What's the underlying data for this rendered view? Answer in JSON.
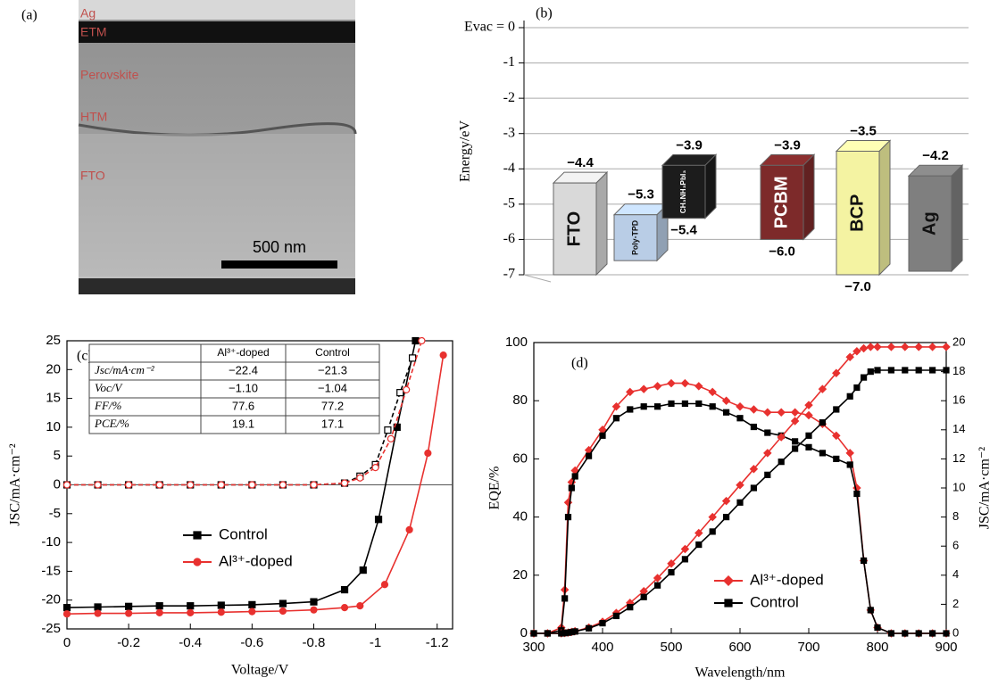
{
  "panel_a": {
    "label": "(a)",
    "layers": [
      "Ag",
      "ETM",
      "Perovskite",
      "HTM",
      "FTO"
    ],
    "scale_bar": "500 nm"
  },
  "chart_data": [
    {
      "type": "energy-level",
      "panel_label": "(b)",
      "ylabel": "Energy/eV",
      "ylim": [
        -7,
        0
      ],
      "yticks": [
        {
          "value": 0,
          "label": "Evac = 0"
        },
        -1,
        -2,
        -3,
        -4,
        -5,
        -6,
        -7
      ],
      "categories": [
        "FTO",
        "Poly-TPD",
        "CH₃NH₃PbI₃",
        "PCBM",
        "BCP",
        "Ag"
      ],
      "colors": [
        "#d9d9d9",
        "#b9cde6",
        "#1c1c1c",
        "#7d2a2a",
        "#f4f3a2",
        "#7f7f7f"
      ],
      "top_values": [
        -4.4,
        -5.3,
        -3.9,
        -3.9,
        -3.5,
        -4.2
      ],
      "top_labels": [
        "−4.4",
        "−5.3",
        "−3.9",
        "−3.9",
        "−3.5",
        "−4.2"
      ],
      "bottom_values": [
        -7.0,
        -6.6,
        -5.4,
        -6.0,
        -7.0,
        -6.9
      ],
      "bottom_labels": [
        null,
        null,
        "−5.4",
        "−6.0",
        "−7.0",
        null
      ]
    },
    {
      "type": "line",
      "panel_label": "(c)",
      "xlabel": "Voltage/V",
      "ylabel": "JSC/mA·cm⁻²",
      "xlim": [
        0,
        -1.25
      ],
      "xticks": [
        0,
        -0.2,
        -0.4,
        -0.6,
        -0.8,
        -1.0,
        -1.2
      ],
      "ylim": [
        -25,
        25
      ],
      "yticks": [
        -25,
        -20,
        -15,
        -10,
        -5,
        0,
        5,
        10,
        15,
        20,
        25
      ],
      "zero_line": true,
      "series": [
        {
          "name": "Control",
          "color": "#000000",
          "marker": "square",
          "filled": true,
          "dashed": false,
          "x": [
            0,
            -0.1,
            -0.2,
            -0.3,
            -0.4,
            -0.5,
            -0.6,
            -0.7,
            -0.8,
            -0.9,
            -0.96,
            -1.01,
            -1.07,
            -1.13
          ],
          "values": [
            -21.3,
            -21.2,
            -21.1,
            -21.0,
            -21.0,
            -20.9,
            -20.8,
            -20.6,
            -20.3,
            -18.2,
            -14.8,
            -6,
            10,
            25
          ]
        },
        {
          "name": "Al³⁺-doped",
          "color": "#e8312f",
          "marker": "circle",
          "filled": true,
          "dashed": false,
          "x": [
            0,
            -0.1,
            -0.2,
            -0.3,
            -0.4,
            -0.5,
            -0.6,
            -0.7,
            -0.8,
            -0.9,
            -0.95,
            -1.03,
            -1.11,
            -1.17,
            -1.22
          ],
          "values": [
            -22.4,
            -22.3,
            -22.3,
            -22.2,
            -22.2,
            -22.1,
            -22.0,
            -21.9,
            -21.7,
            -21.3,
            -21.0,
            -17.3,
            -7.8,
            5.5,
            22.5
          ]
        },
        {
          "color": "#000000",
          "marker": "square",
          "filled": false,
          "dashed": true,
          "x": [
            0,
            -0.1,
            -0.2,
            -0.3,
            -0.4,
            -0.5,
            -0.6,
            -0.7,
            -0.8,
            -0.9,
            -0.95,
            -1.0,
            -1.04,
            -1.08,
            -1.12
          ],
          "values": [
            0,
            0,
            0,
            0,
            0,
            0,
            0,
            0,
            0,
            0.3,
            1.5,
            3.5,
            9.5,
            16,
            22
          ]
        },
        {
          "color": "#e8312f",
          "marker": "circle",
          "filled": false,
          "dashed": true,
          "x": [
            0,
            -0.1,
            -0.2,
            -0.3,
            -0.4,
            -0.5,
            -0.6,
            -0.7,
            -0.8,
            -0.9,
            -0.95,
            -1.0,
            -1.05,
            -1.1,
            -1.15
          ],
          "values": [
            0,
            0,
            0,
            0,
            0,
            0,
            0,
            0,
            0,
            0.3,
            1.2,
            3,
            8,
            16.5,
            25
          ]
        }
      ],
      "table": {
        "columns": [
          "Al³⁺-doped",
          "Control"
        ],
        "rows": [
          {
            "label": "Jsc/mA·cm⁻²",
            "cells": [
              "−22.4",
              "−21.3"
            ]
          },
          {
            "label": "Voc/V",
            "cells": [
              "−1.10",
              "−1.04"
            ]
          },
          {
            "label": "FF/%",
            "cells": [
              "77.6",
              "77.2"
            ]
          },
          {
            "label": "PCE/%",
            "cells": [
              "19.1",
              "17.1"
            ]
          }
        ]
      }
    },
    {
      "type": "line",
      "panel_label": "(d)",
      "xlabel": "Wavelength/nm",
      "ylabel": "EQE/%",
      "y2label": "JSC/mA·cm⁻²",
      "xlim": [
        300,
        900
      ],
      "xticks": [
        300,
        400,
        500,
        600,
        700,
        800,
        900
      ],
      "ylim": [
        0,
        100
      ],
      "yticks": [
        0,
        20,
        40,
        60,
        80,
        100
      ],
      "y2lim": [
        0,
        20
      ],
      "y2ticks": [
        0,
        2,
        4,
        6,
        8,
        10,
        12,
        14,
        16,
        18,
        20
      ],
      "x": [
        300,
        320,
        340,
        345,
        350,
        355,
        360,
        380,
        400,
        420,
        440,
        460,
        480,
        500,
        520,
        540,
        560,
        580,
        600,
        620,
        640,
        660,
        680,
        700,
        720,
        740,
        760,
        770,
        780,
        790,
        800,
        820,
        840,
        860,
        880,
        900
      ],
      "series": [
        {
          "name": "Al³⁺-doped",
          "color": "#e8312f",
          "marker": "diamond",
          "filled": true,
          "dashed": false,
          "values": [
            0,
            0,
            2,
            15,
            45,
            52,
            56,
            63,
            70,
            78,
            83,
            84,
            85,
            86,
            86,
            85,
            83,
            80,
            78,
            77,
            76,
            76,
            76,
            75,
            72,
            68,
            62,
            50,
            25,
            8,
            2,
            0,
            0,
            0,
            0,
            0
          ]
        },
        {
          "name": "Control",
          "color": "#000000",
          "marker": "square",
          "filled": true,
          "dashed": false,
          "values": [
            0,
            0,
            1,
            12,
            40,
            50,
            54,
            61,
            68,
            74,
            77,
            78,
            78,
            79,
            79,
            79,
            78,
            76,
            74,
            71,
            69,
            68,
            66,
            64,
            62,
            60,
            58,
            48,
            25,
            8,
            2,
            0,
            0,
            0,
            0,
            0
          ]
        },
        {
          "color": "#e8312f",
          "marker": "diamond",
          "filled": true,
          "dashed": false,
          "axis": "y2",
          "values": [
            0,
            0,
            0,
            0.02,
            0.05,
            0.1,
            0.15,
            0.4,
            0.8,
            1.4,
            2.1,
            2.9,
            3.8,
            4.8,
            5.8,
            6.9,
            8.0,
            9.1,
            10.2,
            11.3,
            12.4,
            13.5,
            14.6,
            15.7,
            16.8,
            17.9,
            19.0,
            19.4,
            19.6,
            19.7,
            19.7,
            19.7,
            19.7,
            19.7,
            19.7,
            19.7
          ]
        },
        {
          "color": "#000000",
          "marker": "square",
          "filled": true,
          "dashed": false,
          "axis": "y2",
          "values": [
            0,
            0,
            0,
            0.02,
            0.05,
            0.09,
            0.13,
            0.35,
            0.7,
            1.2,
            1.8,
            2.5,
            3.3,
            4.2,
            5.1,
            6.1,
            7.0,
            8.0,
            9.0,
            10.0,
            10.9,
            11.8,
            12.7,
            13.6,
            14.5,
            15.4,
            16.3,
            16.9,
            17.6,
            18.0,
            18.1,
            18.1,
            18.1,
            18.1,
            18.1,
            18.1
          ]
        }
      ]
    }
  ]
}
